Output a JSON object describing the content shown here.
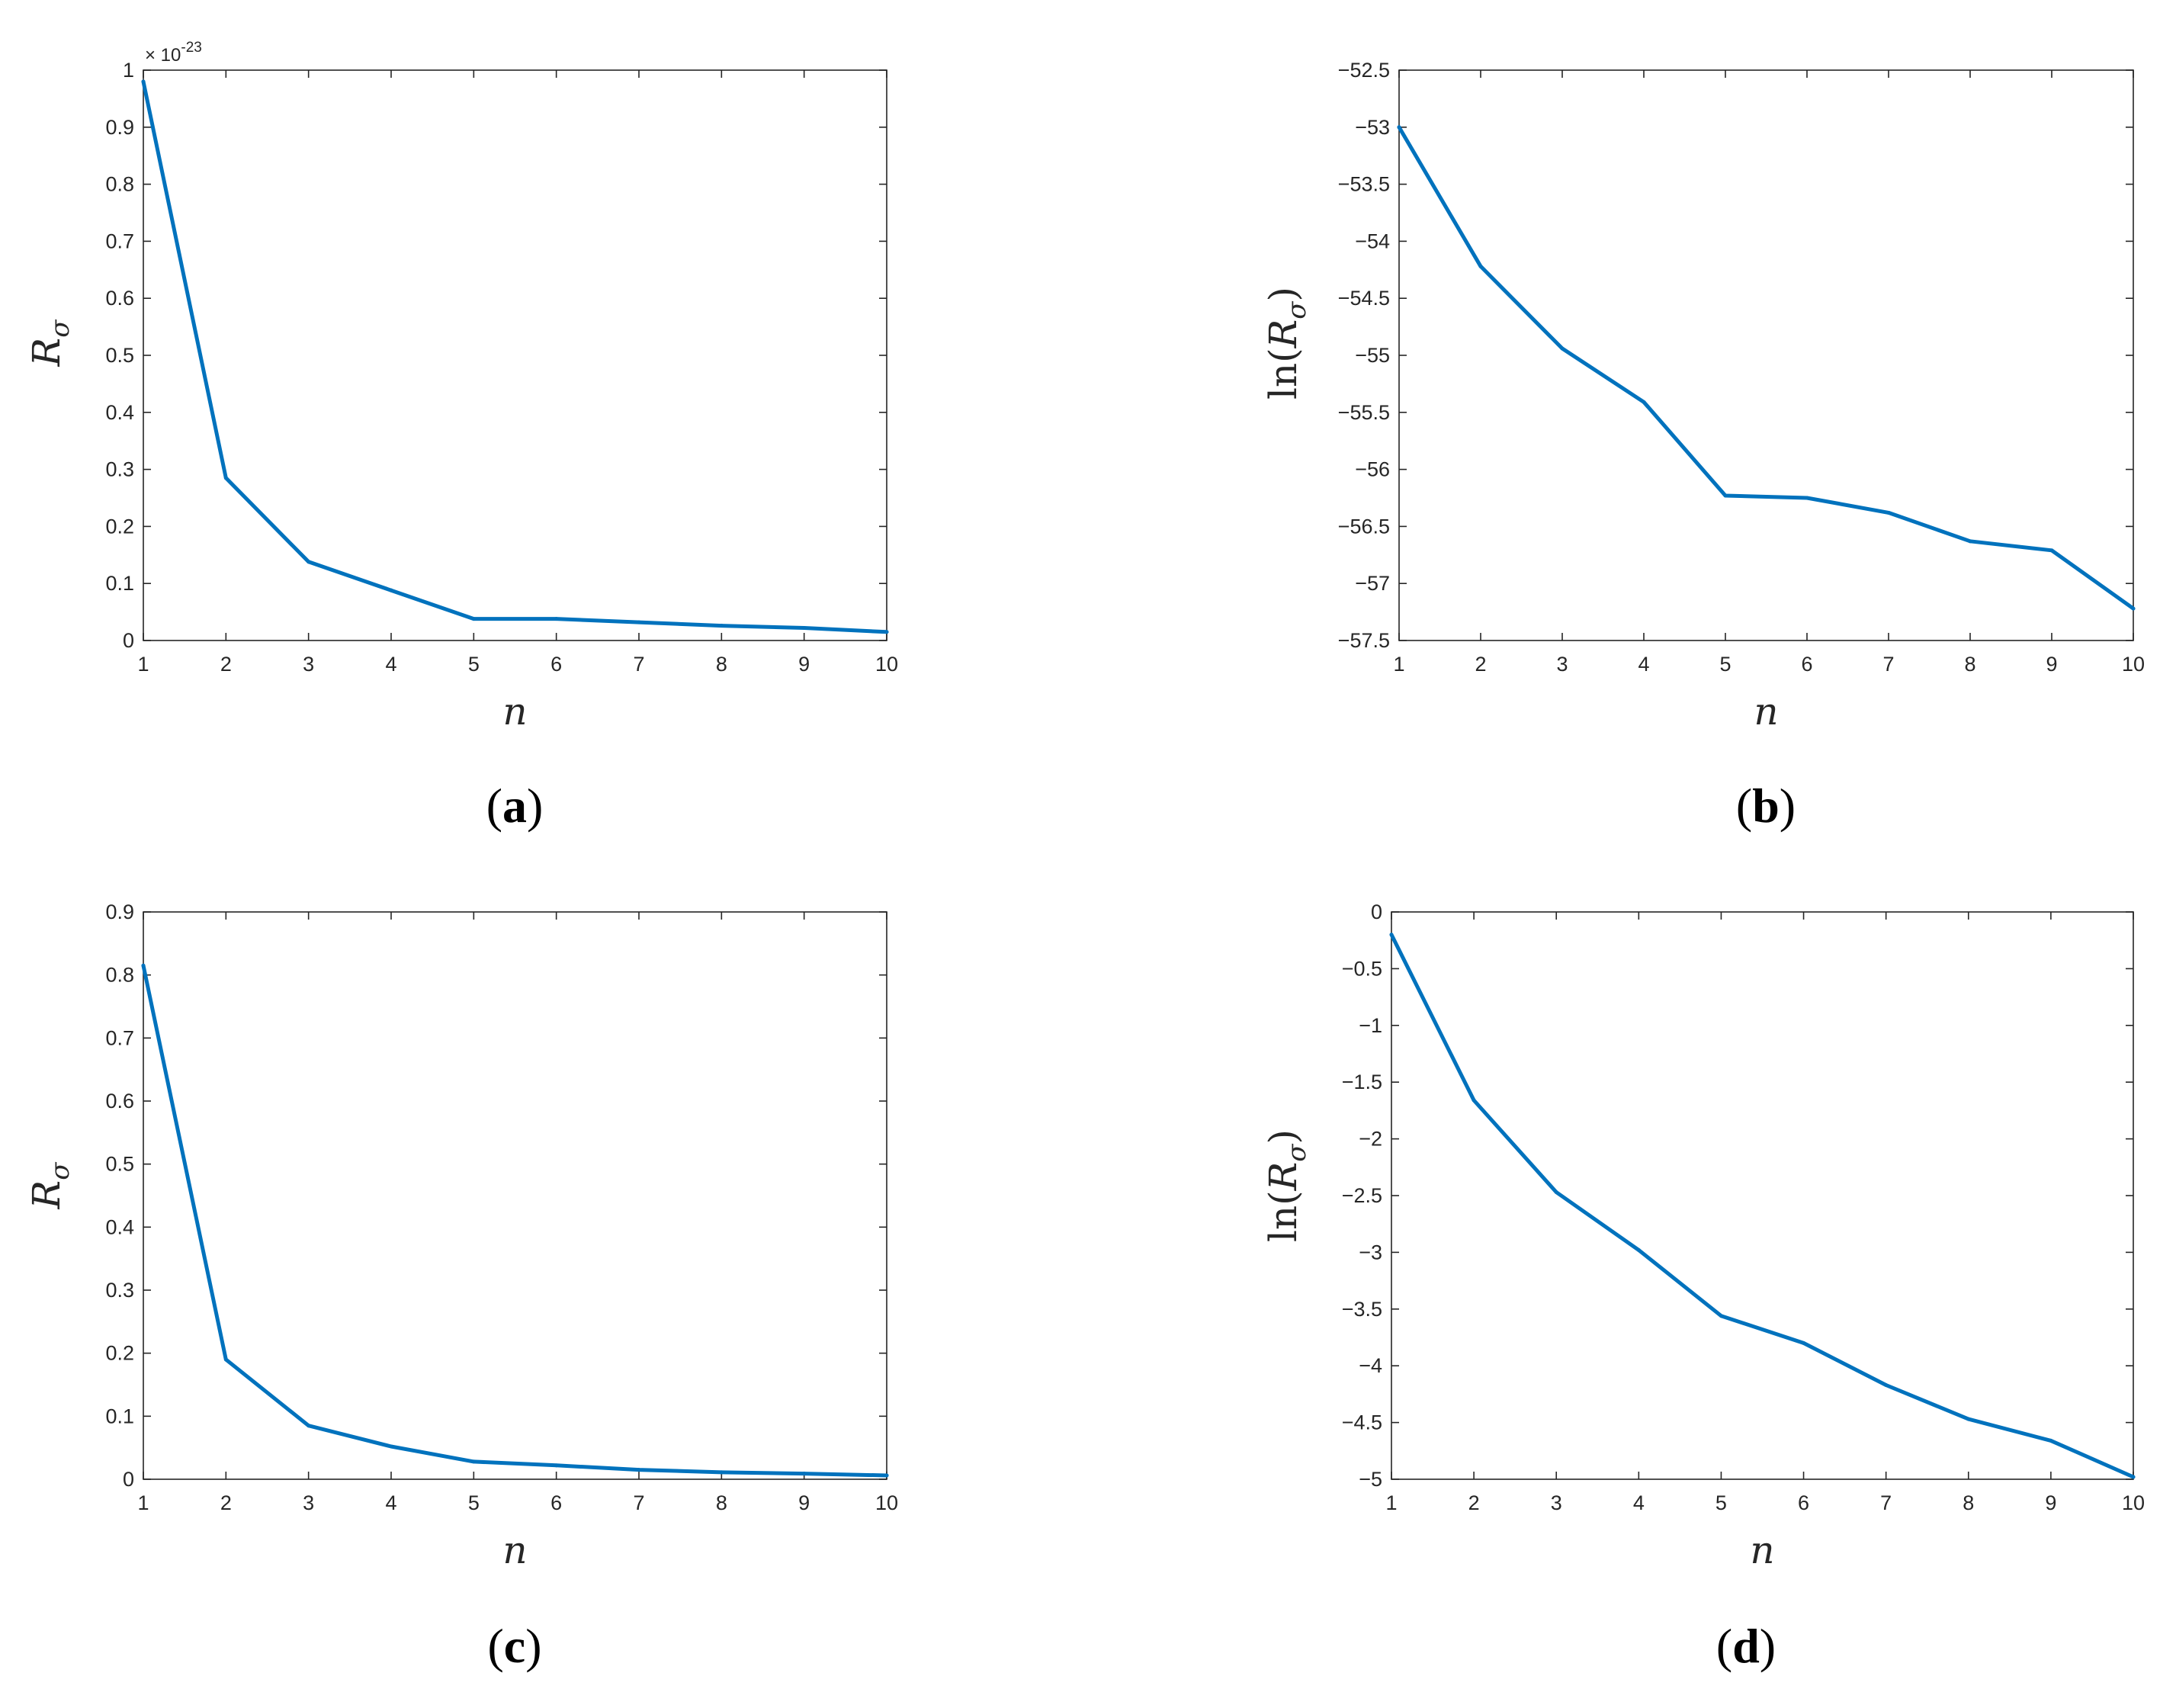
{
  "chart_data": [
    {
      "id": "a",
      "panel_label": "a",
      "type": "line",
      "color": "#0072BD",
      "xlabel": "n",
      "ylabel_main": "R",
      "ylabel_sub": "σ",
      "ylabel_prefix": "",
      "ylabel_suffix": "",
      "exponent_note": "× 10",
      "exponent_power": "-23",
      "x": [
        1,
        2,
        3,
        4,
        5,
        6,
        7,
        8,
        9,
        10
      ],
      "y": [
        0.98,
        0.285,
        0.138,
        0.088,
        0.038,
        0.038,
        0.032,
        0.026,
        0.022,
        0.015
      ],
      "xlim": [
        1,
        10
      ],
      "ylim": [
        0,
        1
      ],
      "xticks": [
        1,
        2,
        3,
        4,
        5,
        6,
        7,
        8,
        9,
        10
      ],
      "yticks": [
        0,
        0.1,
        0.2,
        0.3,
        0.4,
        0.5,
        0.6,
        0.7,
        0.8,
        0.9,
        1
      ],
      "yticklabels": [
        "0",
        "0.1",
        "0.2",
        "0.3",
        "0.4",
        "0.5",
        "0.6",
        "0.7",
        "0.8",
        "0.9",
        "1"
      ],
      "grid": false
    },
    {
      "id": "b",
      "panel_label": "b",
      "type": "line",
      "color": "#0072BD",
      "xlabel": "n",
      "ylabel_main": "R",
      "ylabel_sub": "σ",
      "ylabel_prefix": "ln(",
      "ylabel_suffix": ")",
      "exponent_note": "",
      "exponent_power": "",
      "x": [
        1,
        2,
        3,
        4,
        5,
        6,
        7,
        8,
        9,
        10
      ],
      "y": [
        -53.0,
        -54.22,
        -54.94,
        -55.41,
        -56.23,
        -56.25,
        -56.38,
        -56.63,
        -56.71,
        -57.22
      ],
      "xlim": [
        1,
        10
      ],
      "ylim": [
        -57.5,
        -52.5
      ],
      "xticks": [
        1,
        2,
        3,
        4,
        5,
        6,
        7,
        8,
        9,
        10
      ],
      "yticks": [
        -57.5,
        -57,
        -56.5,
        -56,
        -55.5,
        -55,
        -54.5,
        -54,
        -53.5,
        -53,
        -52.5
      ],
      "yticklabels": [
        "−57.5",
        "−57",
        "−56.5",
        "−56",
        "−55.5",
        "−55",
        "−54.5",
        "−54",
        "−53.5",
        "−53",
        "−52.5"
      ],
      "grid": false
    },
    {
      "id": "c",
      "panel_label": "c",
      "type": "line",
      "color": "#0072BD",
      "xlabel": "n",
      "ylabel_main": "R",
      "ylabel_sub": "σ",
      "ylabel_prefix": "",
      "ylabel_suffix": "",
      "exponent_note": "",
      "exponent_power": "",
      "x": [
        1,
        2,
        3,
        4,
        5,
        6,
        7,
        8,
        9,
        10
      ],
      "y": [
        0.815,
        0.19,
        0.085,
        0.052,
        0.028,
        0.022,
        0.015,
        0.011,
        0.009,
        0.006
      ],
      "xlim": [
        1,
        10
      ],
      "ylim": [
        0,
        0.9
      ],
      "xticks": [
        1,
        2,
        3,
        4,
        5,
        6,
        7,
        8,
        9,
        10
      ],
      "yticks": [
        0,
        0.1,
        0.2,
        0.3,
        0.4,
        0.5,
        0.6,
        0.7,
        0.8,
        0.9
      ],
      "yticklabels": [
        "0",
        "0.1",
        "0.2",
        "0.3",
        "0.4",
        "0.5",
        "0.6",
        "0.7",
        "0.8",
        "0.9"
      ],
      "grid": false
    },
    {
      "id": "d",
      "panel_label": "d",
      "type": "line",
      "color": "#0072BD",
      "xlabel": "n",
      "ylabel_main": "R",
      "ylabel_sub": "σ",
      "ylabel_prefix": "ln(",
      "ylabel_suffix": ")",
      "exponent_note": "",
      "exponent_power": "",
      "x": [
        1,
        2,
        3,
        4,
        5,
        6,
        7,
        8,
        9,
        10
      ],
      "y": [
        -0.2,
        -1.66,
        -2.47,
        -2.98,
        -3.56,
        -3.8,
        -4.17,
        -4.47,
        -4.66,
        -4.98
      ],
      "xlim": [
        1,
        10
      ],
      "ylim": [
        -5,
        0
      ],
      "xticks": [
        1,
        2,
        3,
        4,
        5,
        6,
        7,
        8,
        9,
        10
      ],
      "yticks": [
        -5,
        -4.5,
        -4,
        -3.5,
        -3,
        -2.5,
        -2,
        -1.5,
        -1,
        -0.5,
        0
      ],
      "yticklabels": [
        "−5",
        "−4.5",
        "−4",
        "−3.5",
        "−3",
        "−2.5",
        "−2",
        "−1.5",
        "−1",
        "−0.5",
        "0"
      ],
      "grid": false
    }
  ]
}
